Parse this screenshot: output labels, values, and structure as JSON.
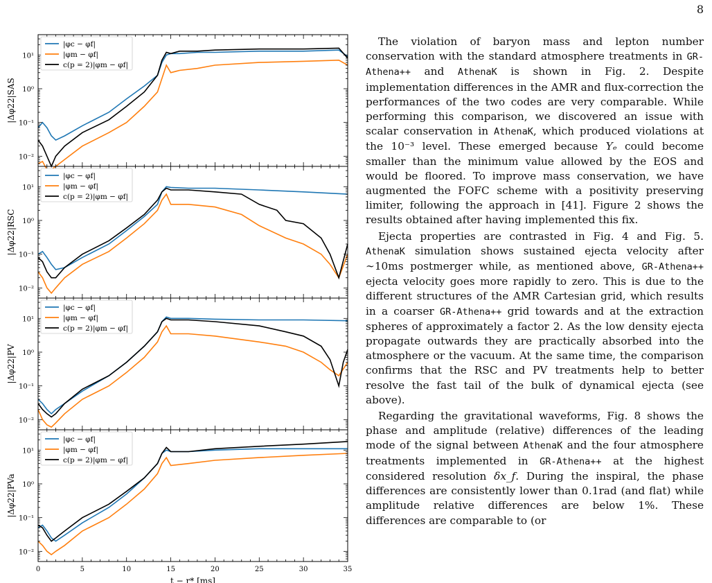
{
  "page_number": "8",
  "figure": {
    "xlabel": "t − r* [ms]",
    "x_ticks": [
      "0",
      "5",
      "10",
      "15",
      "20",
      "25",
      "30",
      "35"
    ],
    "y_ticks": [
      "10¹",
      "10⁰",
      "10⁻¹",
      "10⁻²"
    ],
    "legend": [
      "|φc − φf|",
      "|φm − φf|",
      "c(p = 2)|φm − φf|"
    ],
    "colors": {
      "phi_c": "#1f77b4",
      "phi_m": "#ff7f0e",
      "scaled": "#000000"
    },
    "panels": [
      {
        "ylabel": "|Δφ22|SAS"
      },
      {
        "ylabel": "|Δφ22|RSC"
      },
      {
        "ylabel": "|Δφ22|PV"
      },
      {
        "ylabel": "|Δφ22|PVa"
      }
    ]
  },
  "chart_data": [
    {
      "type": "line",
      "ylabel": "|Δφ22|SAS",
      "xlabel": "t − r* [ms]",
      "xlim": [
        0,
        35
      ],
      "ylim": [
        0.005,
        40
      ],
      "yscale": "log",
      "series": [
        {
          "name": "|φc − φf|",
          "x": [
            0,
            0.5,
            1,
            1.5,
            2,
            3,
            5,
            8,
            10,
            12,
            13.5,
            14,
            14.5,
            15,
            16,
            18,
            20,
            25,
            30,
            34,
            35
          ],
          "y": [
            0.07,
            0.1,
            0.07,
            0.04,
            0.03,
            0.04,
            0.08,
            0.2,
            0.5,
            1.2,
            2.5,
            6,
            10,
            11,
            11,
            12,
            12,
            13,
            13,
            14,
            9
          ]
        },
        {
          "name": "|φm − φf|",
          "x": [
            0,
            0.5,
            1,
            1.5,
            2,
            3,
            5,
            8,
            10,
            12,
            13.5,
            14,
            14.5,
            15,
            16,
            18,
            20,
            25,
            30,
            34,
            35
          ],
          "y": [
            0.006,
            0.007,
            0.004,
            0.004,
            0.005,
            0.008,
            0.02,
            0.05,
            0.1,
            0.3,
            0.8,
            2,
            5,
            3,
            3.5,
            4,
            5,
            6,
            6.5,
            7,
            5
          ]
        },
        {
          "name": "c(p = 2)|φm − φf|",
          "x": [
            0,
            0.5,
            1,
            1.5,
            2,
            3,
            5,
            8,
            10,
            12,
            13.5,
            14,
            14.5,
            15,
            16,
            18,
            20,
            25,
            30,
            34,
            35
          ],
          "y": [
            0.03,
            0.02,
            0.01,
            0.005,
            0.01,
            0.02,
            0.05,
            0.12,
            0.3,
            0.8,
            2.5,
            7,
            12,
            11,
            13,
            13,
            14,
            15,
            15,
            16,
            8
          ]
        }
      ]
    },
    {
      "type": "line",
      "ylabel": "|Δφ22|RSC",
      "xlabel": "t − r* [ms]",
      "xlim": [
        0,
        35
      ],
      "ylim": [
        0.005,
        40
      ],
      "yscale": "log",
      "series": [
        {
          "name": "|φc − φf|",
          "x": [
            0,
            0.5,
            1,
            1.5,
            2,
            3,
            5,
            8,
            10,
            12,
            13.5,
            14,
            14.5,
            15,
            17,
            20,
            25,
            30,
            35
          ],
          "y": [
            0.1,
            0.12,
            0.08,
            0.05,
            0.035,
            0.04,
            0.08,
            0.2,
            0.5,
            1.3,
            3,
            7,
            10,
            9.5,
            9,
            9,
            8,
            7,
            6
          ]
        },
        {
          "name": "|φm − φf|",
          "x": [
            0,
            0.5,
            1,
            1.5,
            2,
            3,
            5,
            8,
            10,
            12,
            13.5,
            14,
            14.5,
            15,
            17,
            20,
            23,
            25,
            28,
            30,
            32,
            33,
            34,
            35
          ],
          "y": [
            0.03,
            0.02,
            0.01,
            0.007,
            0.01,
            0.02,
            0.05,
            0.12,
            0.3,
            0.8,
            2,
            4,
            6,
            3,
            3,
            2.5,
            1.5,
            0.7,
            0.3,
            0.2,
            0.1,
            0.05,
            0.02,
            0.1
          ]
        },
        {
          "name": "c(p = 2)|φm − φf|",
          "x": [
            0,
            0.5,
            1,
            1.5,
            2,
            3,
            5,
            8,
            10,
            12,
            13.5,
            14,
            14.5,
            15,
            17,
            20,
            23,
            25,
            27,
            28,
            30,
            32,
            33,
            34,
            35
          ],
          "y": [
            0.08,
            0.06,
            0.03,
            0.02,
            0.02,
            0.04,
            0.1,
            0.25,
            0.6,
            1.5,
            4,
            7,
            9,
            8,
            8,
            7,
            6,
            3,
            2,
            1,
            0.8,
            0.3,
            0.1,
            0.02,
            0.2
          ]
        }
      ]
    },
    {
      "type": "line",
      "ylabel": "|Δφ22|PV",
      "xlabel": "t − r* [ms]",
      "xlim": [
        0,
        35
      ],
      "ylim": [
        0.005,
        40
      ],
      "yscale": "log",
      "series": [
        {
          "name": "|φc − φf|",
          "x": [
            0,
            0.5,
            1,
            1.5,
            2,
            3,
            5,
            8,
            10,
            12,
            13.5,
            14,
            14.5,
            15,
            17,
            20,
            25,
            30,
            35
          ],
          "y": [
            0.04,
            0.03,
            0.02,
            0.015,
            0.02,
            0.03,
            0.07,
            0.2,
            0.5,
            1.5,
            4,
            8,
            11,
            10,
            10,
            9.5,
            9,
            9,
            8.5
          ]
        },
        {
          "name": "|φm − φf|",
          "x": [
            0,
            0.5,
            1,
            1.5,
            2,
            3,
            5,
            8,
            10,
            12,
            13.5,
            14,
            14.5,
            15,
            17,
            20,
            25,
            28,
            30,
            32,
            33,
            34,
            35
          ],
          "y": [
            0.02,
            0.01,
            0.007,
            0.006,
            0.008,
            0.015,
            0.04,
            0.1,
            0.25,
            0.7,
            2,
            4,
            6,
            3.5,
            3.5,
            3,
            2,
            1.5,
            1,
            0.5,
            0.3,
            0.2,
            0.5
          ]
        },
        {
          "name": "c(p = 2)|φm − φf|",
          "x": [
            0,
            0.5,
            1,
            1.5,
            2,
            3,
            5,
            8,
            10,
            12,
            13.5,
            14,
            14.5,
            15,
            17,
            20,
            25,
            28,
            30,
            32,
            33,
            34,
            34.5,
            35
          ],
          "y": [
            0.03,
            0.02,
            0.015,
            0.012,
            0.015,
            0.03,
            0.08,
            0.2,
            0.5,
            1.5,
            4,
            8,
            10,
            9,
            9,
            8,
            6,
            4,
            3,
            1.5,
            0.6,
            0.1,
            0.5,
            1.2
          ]
        }
      ]
    },
    {
      "type": "line",
      "ylabel": "|Δφ22|PVa",
      "xlabel": "t − r* [ms]",
      "xlim": [
        0,
        35
      ],
      "ylim": [
        0.005,
        40
      ],
      "yscale": "log",
      "series": [
        {
          "name": "|φc − φf|",
          "x": [
            0,
            0.5,
            1,
            1.5,
            2,
            3,
            5,
            8,
            10,
            12,
            13.5,
            14,
            14.5,
            15,
            17,
            20,
            25,
            30,
            35
          ],
          "y": [
            0.05,
            0.06,
            0.04,
            0.025,
            0.02,
            0.03,
            0.07,
            0.2,
            0.5,
            1.5,
            4,
            8,
            10,
            9,
            9,
            10,
            11,
            11,
            11
          ]
        },
        {
          "name": "|φm − φf|",
          "x": [
            0,
            0.5,
            1,
            1.5,
            2,
            3,
            5,
            8,
            10,
            12,
            13.5,
            14,
            14.5,
            15,
            17,
            20,
            25,
            30,
            35
          ],
          "y": [
            0.02,
            0.015,
            0.01,
            0.008,
            0.01,
            0.015,
            0.04,
            0.1,
            0.25,
            0.7,
            2,
            4,
            6,
            3.5,
            4,
            5,
            6,
            7,
            8
          ]
        },
        {
          "name": "c(p = 2)|φm − φf|",
          "x": [
            0,
            0.5,
            1,
            1.5,
            2,
            3,
            5,
            8,
            10,
            12,
            13.5,
            14,
            14.5,
            15,
            17,
            20,
            25,
            30,
            35
          ],
          "y": [
            0.06,
            0.05,
            0.03,
            0.02,
            0.025,
            0.04,
            0.1,
            0.25,
            0.6,
            1.5,
            4,
            8,
            12,
            9,
            9,
            11,
            13,
            15,
            18
          ]
        }
      ]
    }
  ],
  "text": {
    "p1_a": "The violation of baryon mass and lepton number conservation with the standard atmosphere treatments in ",
    "code_gr": "GR-Athena++",
    "p1_b": " and ",
    "code_ak": "AthenaK",
    "p1_c": " is shown in Fig. 2. Despite implementation differences in the AMR and flux-correction the performances of the two codes are very comparable. While performing this comparison, we discovered an issue with scalar conservation in ",
    "p1_d": ", which produced violations at the 10⁻³ level. These emerged because ",
    "ye": "Yₑ",
    "p1_e": " could become smaller than the minimum value allowed by the EOS and would be floored. To improve mass conservation, we have augmented the FOFC scheme with a positivity preserving limiter, following the approach in [41]. Figure 2 shows the results obtained after having implemented this fix.",
    "p2_a": "Ejecta properties are contrasted in Fig. 4 and Fig. 5. ",
    "p2_b": " simulation shows sustained ejecta velocity after ∼10ms postmerger while, as mentioned above, ",
    "p2_c": " ejecta velocity goes more rapidly to zero. This is due to the different structures of the AMR Cartesian grid, which results in a coarser ",
    "p2_d": " grid towards and at the extraction spheres of approximately a factor 2. As the low density ejecta propagate outwards they are practically absorbed into the atmosphere or the vacuum. At the same time, the comparison confirms that the RSC and PV treatments help to better resolve the fast tail of the bulk of dynamical ejecta (see above).",
    "p3_a": "Regarding the gravitational waveforms, Fig. 8 shows the phase and amplitude (relative) differences of the leading mode of the signal between ",
    "p3_b": " and the four atmosphere treatments implemented in ",
    "p3_c": " at the highest considered resolution ",
    "dxf": "δx_f",
    "p3_d": ". During the inspiral, the phase differences are consistently lower than 0.1rad (and flat) while amplitude relative differences are below 1%. These differences are comparable to (or"
  }
}
